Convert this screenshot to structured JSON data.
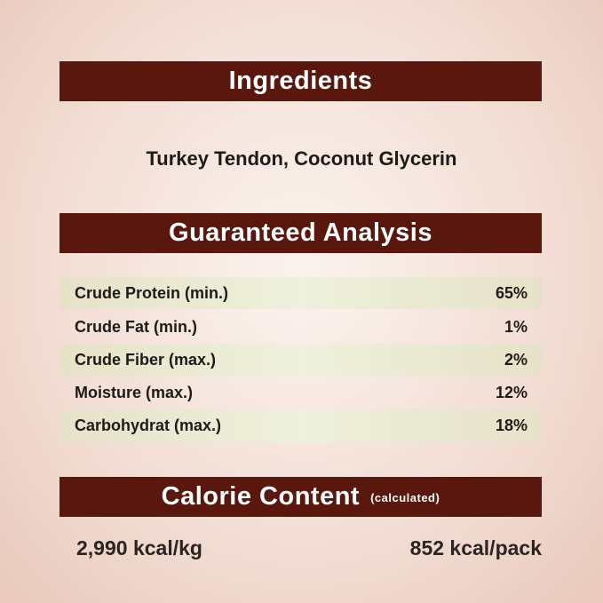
{
  "ingredients": {
    "title": "Ingredients",
    "text": "Turkey Tendon, Coconut Glycerin"
  },
  "analysis": {
    "title": "Guaranteed Analysis",
    "rows": [
      {
        "label": "Crude Protein (min.)",
        "value": "65%"
      },
      {
        "label": "Crude Fat (min.)",
        "value": "1%"
      },
      {
        "label": "Crude Fiber (max.)",
        "value": "2%"
      },
      {
        "label": "Moisture (max.)",
        "value": "12%"
      },
      {
        "label": "Carbohydrat (max.)",
        "value": "18%"
      }
    ]
  },
  "calorie": {
    "title": "Calorie Content",
    "note": "(calculated)",
    "per_kg": "2,990 kcal/kg",
    "per_pack": "852 kcal/pack"
  },
  "colors": {
    "banner": "#5a170d",
    "row_shade": "#e9e8d0"
  }
}
